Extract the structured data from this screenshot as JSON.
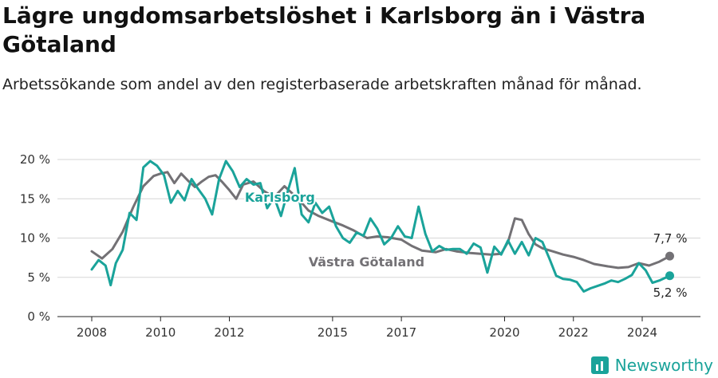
{
  "title": "Lägre ungdomsarbetslöshet i Karlsborg än i Västra Götaland",
  "subtitle": "Arbetssökande som andel av den registerbaserade arbetskraften månad för månad.",
  "brand": "Newsworthy",
  "chart_data": {
    "type": "line",
    "y_ticks": [
      "0 %",
      "5 %",
      "10 %",
      "15 %",
      "20 %"
    ],
    "y_tick_values": [
      0,
      5,
      10,
      15,
      20
    ],
    "x_ticks": [
      "2008",
      "2010",
      "2012",
      "2015",
      "2017",
      "2020",
      "2022",
      "2024"
    ],
    "x_tick_values": [
      2008,
      2010,
      2012,
      2015,
      2017,
      2020,
      2022,
      2024
    ],
    "xlim": [
      2007.5,
      2025.5
    ],
    "ylim": [
      0,
      20.5
    ],
    "grid": true,
    "series": [
      {
        "name": "Västra Götaland",
        "label": "Västra Götaland",
        "color": "#737175",
        "end_label": "7,7 %",
        "end_value": 7.7,
        "x": [
          2008.0,
          2008.3,
          2008.6,
          2008.9,
          2009.2,
          2009.5,
          2009.8,
          2010.0,
          2010.2,
          2010.4,
          2010.6,
          2010.8,
          2011.0,
          2011.2,
          2011.4,
          2011.6,
          2011.8,
          2012.0,
          2012.2,
          2012.4,
          2012.7,
          2013.0,
          2013.3,
          2013.6,
          2014.0,
          2014.3,
          2014.6,
          2015.0,
          2015.3,
          2015.6,
          2016.0,
          2016.3,
          2016.6,
          2017.0,
          2017.3,
          2017.6,
          2018.0,
          2018.3,
          2018.6,
          2019.0,
          2019.3,
          2019.6,
          2019.9,
          2020.1,
          2020.3,
          2020.5,
          2020.7,
          2020.9,
          2021.1,
          2021.4,
          2021.7,
          2022.0,
          2022.3,
          2022.6,
          2023.0,
          2023.3,
          2023.6,
          2023.9,
          2024.2,
          2024.5,
          2024.8
        ],
        "values": [
          8.3,
          7.4,
          8.6,
          10.8,
          13.9,
          16.6,
          17.9,
          18.2,
          18.4,
          17.0,
          18.2,
          17.3,
          16.5,
          17.2,
          17.8,
          18.0,
          17.1,
          16.1,
          15.0,
          16.8,
          17.2,
          16.0,
          15.2,
          16.6,
          15.0,
          13.5,
          12.8,
          12.1,
          11.6,
          11.0,
          10.0,
          10.2,
          10.1,
          9.8,
          9.0,
          8.4,
          8.2,
          8.6,
          8.3,
          8.1,
          8.0,
          7.9,
          8.0,
          9.5,
          12.5,
          12.3,
          10.5,
          9.2,
          8.7,
          8.3,
          7.9,
          7.6,
          7.2,
          6.7,
          6.4,
          6.2,
          6.3,
          6.8,
          6.5,
          7.0,
          7.7
        ]
      },
      {
        "name": "Karlsborg",
        "label": "Karlsborg",
        "color": "#1aa39a",
        "end_label": "5,2 %",
        "end_value": 5.2,
        "x": [
          2008.0,
          2008.2,
          2008.4,
          2008.55,
          2008.7,
          2008.9,
          2009.1,
          2009.3,
          2009.5,
          2009.7,
          2009.9,
          2010.1,
          2010.3,
          2010.5,
          2010.7,
          2010.9,
          2011.1,
          2011.3,
          2011.5,
          2011.7,
          2011.9,
          2012.1,
          2012.3,
          2012.5,
          2012.7,
          2012.9,
          2013.1,
          2013.3,
          2013.5,
          2013.7,
          2013.9,
          2014.1,
          2014.3,
          2014.5,
          2014.7,
          2014.9,
          2015.1,
          2015.3,
          2015.5,
          2015.7,
          2015.9,
          2016.1,
          2016.3,
          2016.5,
          2016.7,
          2016.9,
          2017.1,
          2017.3,
          2017.5,
          2017.7,
          2017.9,
          2018.1,
          2018.3,
          2018.5,
          2018.7,
          2018.9,
          2019.1,
          2019.3,
          2019.5,
          2019.7,
          2019.9,
          2020.1,
          2020.3,
          2020.5,
          2020.7,
          2020.9,
          2021.1,
          2021.3,
          2021.5,
          2021.7,
          2021.9,
          2022.1,
          2022.3,
          2022.5,
          2022.7,
          2022.9,
          2023.1,
          2023.3,
          2023.5,
          2023.7,
          2023.9,
          2024.1,
          2024.3,
          2024.5,
          2024.8
        ],
        "values": [
          6.0,
          7.2,
          6.5,
          4.0,
          6.8,
          8.5,
          13.2,
          12.3,
          19.0,
          19.8,
          19.2,
          18.0,
          14.5,
          16.0,
          14.8,
          17.5,
          16.2,
          15.0,
          13.0,
          17.5,
          19.8,
          18.5,
          16.5,
          17.5,
          16.8,
          17.0,
          13.8,
          15.2,
          12.8,
          16.0,
          18.9,
          13.0,
          12.0,
          14.5,
          13.2,
          14.0,
          11.5,
          10.0,
          9.4,
          10.7,
          10.3,
          12.5,
          11.2,
          9.2,
          10.0,
          11.5,
          10.2,
          10.0,
          14.0,
          10.5,
          8.3,
          9.0,
          8.5,
          8.6,
          8.6,
          8.0,
          9.3,
          8.8,
          5.6,
          8.9,
          7.9,
          9.7,
          8.0,
          9.5,
          7.8,
          10.0,
          9.5,
          7.4,
          5.2,
          4.8,
          4.7,
          4.4,
          3.2,
          3.6,
          3.9,
          4.2,
          4.6,
          4.4,
          4.8,
          5.3,
          6.8,
          5.9,
          4.3,
          4.6,
          5.2
        ]
      }
    ]
  }
}
